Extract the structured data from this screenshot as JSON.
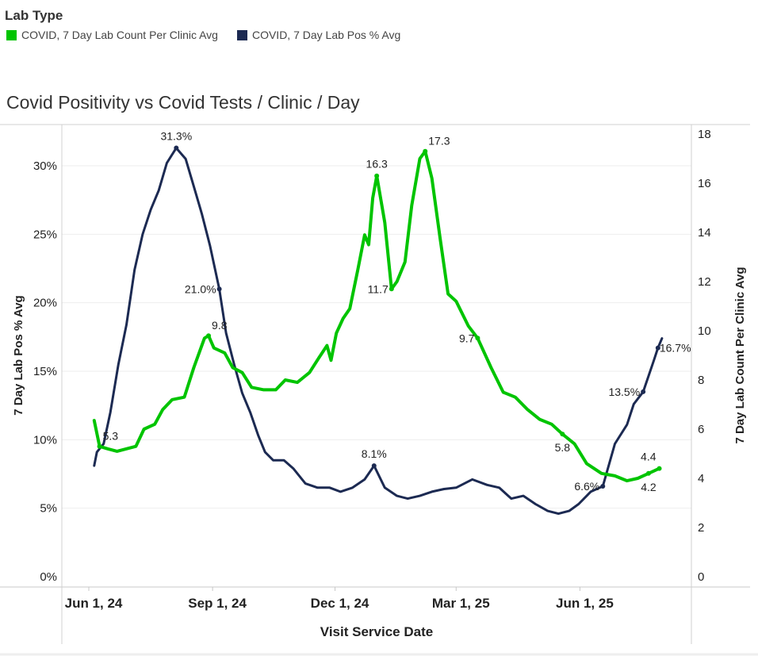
{
  "legend": {
    "title": "Lab Type",
    "items": [
      {
        "label": "COVID, 7 Day Lab Count Per Clinic Avg",
        "color": "#00c400"
      },
      {
        "label": "COVID, 7 Day Lab Pos % Avg",
        "color": "#1c2a52"
      }
    ]
  },
  "chart_data": {
    "type": "line",
    "title": "Covid Positivity vs Covid Tests / Clinic / Day",
    "xlabel": "Visit Service Date",
    "ylabel_left": "7 Day Lab Pos % Avg",
    "ylabel_right": "7 Day Lab Count Per Clinic Avg",
    "x_units": "days since Jun 1, 2024",
    "x_ticks": [
      {
        "day": 0,
        "label": "Jun 1, 24"
      },
      {
        "day": 92,
        "label": "Sep 1, 24"
      },
      {
        "day": 183,
        "label": "Dec 1, 24"
      },
      {
        "day": 273,
        "label": "Mar 1, 25"
      },
      {
        "day": 365,
        "label": "Jun 1, 25"
      }
    ],
    "xlim": [
      -20,
      450
    ],
    "ylim_left": [
      0,
      32.5
    ],
    "ylim_right": [
      0,
      18.3
    ],
    "left_ticks": [
      {
        "v": 0,
        "label": "0%"
      },
      {
        "v": 5,
        "label": "5%"
      },
      {
        "v": 10,
        "label": "10%"
      },
      {
        "v": 15,
        "label": "15%"
      },
      {
        "v": 20,
        "label": "20%"
      },
      {
        "v": 25,
        "label": "25%"
      },
      {
        "v": 30,
        "label": "30%"
      }
    ],
    "right_ticks": [
      {
        "v": 0,
        "label": "0"
      },
      {
        "v": 2,
        "label": "2"
      },
      {
        "v": 4,
        "label": "4"
      },
      {
        "v": 6,
        "label": "6"
      },
      {
        "v": 8,
        "label": "8"
      },
      {
        "v": 10,
        "label": "10"
      },
      {
        "v": 12,
        "label": "12"
      },
      {
        "v": 14,
        "label": "14"
      },
      {
        "v": 16,
        "label": "16"
      },
      {
        "v": 18,
        "label": "18"
      }
    ],
    "grid": true,
    "series": [
      {
        "name": "COVID, 7 Day Lab Pos % Avg",
        "axis": "left",
        "color": "#1c2a52",
        "points": [
          [
            4,
            8.1
          ],
          [
            6,
            9.1
          ],
          [
            11,
            9.7
          ],
          [
            16,
            12.0
          ],
          [
            22,
            15.5
          ],
          [
            28,
            18.4
          ],
          [
            34,
            22.4
          ],
          [
            40,
            25.0
          ],
          [
            46,
            26.8
          ],
          [
            52,
            28.2
          ],
          [
            58,
            30.2
          ],
          [
            65,
            31.3
          ],
          [
            72,
            30.5
          ],
          [
            78,
            28.5
          ],
          [
            84,
            26.5
          ],
          [
            90,
            24.2
          ],
          [
            97,
            21.0
          ],
          [
            102,
            17.8
          ],
          [
            108,
            15.5
          ],
          [
            114,
            13.4
          ],
          [
            120,
            12.0
          ],
          [
            126,
            10.3
          ],
          [
            131,
            9.1
          ],
          [
            137,
            8.5
          ],
          [
            145,
            8.5
          ],
          [
            152,
            7.9
          ],
          [
            161,
            6.8
          ],
          [
            170,
            6.5
          ],
          [
            179,
            6.5
          ],
          [
            187,
            6.2
          ],
          [
            196,
            6.5
          ],
          [
            205,
            7.1
          ],
          [
            212,
            8.1
          ],
          [
            220,
            6.5
          ],
          [
            229,
            5.9
          ],
          [
            237,
            5.7
          ],
          [
            246,
            5.9
          ],
          [
            255,
            6.2
          ],
          [
            264,
            6.4
          ],
          [
            273,
            6.5
          ],
          [
            285,
            7.1
          ],
          [
            296,
            6.7
          ],
          [
            305,
            6.5
          ],
          [
            314,
            5.7
          ],
          [
            323,
            5.9
          ],
          [
            332,
            5.3
          ],
          [
            341,
            4.8
          ],
          [
            349,
            4.6
          ],
          [
            357,
            4.8
          ],
          [
            364,
            5.3
          ],
          [
            373,
            6.2
          ],
          [
            382,
            6.6
          ],
          [
            391,
            9.7
          ],
          [
            400,
            11.1
          ],
          [
            405,
            12.6
          ],
          [
            412,
            13.5
          ],
          [
            420,
            15.8
          ],
          [
            423,
            16.7
          ],
          [
            426,
            17.4
          ]
        ]
      },
      {
        "name": "COVID, 7 Day Lab Count Per Clinic Avg",
        "axis": "right",
        "color": "#00c400",
        "points": [
          [
            4,
            6.35
          ],
          [
            8,
            5.3
          ],
          [
            14,
            5.2
          ],
          [
            21,
            5.1
          ],
          [
            28,
            5.2
          ],
          [
            35,
            5.3
          ],
          [
            41,
            6.0
          ],
          [
            49,
            6.2
          ],
          [
            55,
            6.8
          ],
          [
            62,
            7.2
          ],
          [
            71,
            7.3
          ],
          [
            78,
            8.5
          ],
          [
            86,
            9.7
          ],
          [
            89,
            9.8
          ],
          [
            93,
            9.3
          ],
          [
            101,
            9.1
          ],
          [
            107,
            8.5
          ],
          [
            114,
            8.3
          ],
          [
            121,
            7.7
          ],
          [
            130,
            7.6
          ],
          [
            139,
            7.6
          ],
          [
            146,
            8.0
          ],
          [
            155,
            7.9
          ],
          [
            164,
            8.3
          ],
          [
            171,
            8.9
          ],
          [
            177,
            9.4
          ],
          [
            180,
            8.8
          ],
          [
            184,
            9.9
          ],
          [
            189,
            10.5
          ],
          [
            194,
            10.9
          ],
          [
            200,
            12.5
          ],
          [
            205,
            13.9
          ],
          [
            208,
            13.5
          ],
          [
            211,
            15.4
          ],
          [
            214,
            16.3
          ],
          [
            220,
            14.4
          ],
          [
            225,
            11.7
          ],
          [
            229,
            12.0
          ],
          [
            235,
            12.8
          ],
          [
            240,
            15.1
          ],
          [
            246,
            17.0
          ],
          [
            250,
            17.3
          ],
          [
            255,
            16.2
          ],
          [
            261,
            13.8
          ],
          [
            267,
            11.5
          ],
          [
            273,
            11.2
          ],
          [
            282,
            10.2
          ],
          [
            289,
            9.7
          ],
          [
            299,
            8.5
          ],
          [
            308,
            7.5
          ],
          [
            317,
            7.3
          ],
          [
            326,
            6.8
          ],
          [
            335,
            6.4
          ],
          [
            344,
            6.2
          ],
          [
            352,
            5.8
          ],
          [
            361,
            5.4
          ],
          [
            370,
            4.6
          ],
          [
            381,
            4.2
          ],
          [
            391,
            4.1
          ],
          [
            400,
            3.9
          ],
          [
            408,
            4.0
          ],
          [
            416,
            4.2
          ],
          [
            424,
            4.4
          ]
        ]
      }
    ],
    "annotations": [
      {
        "series": 0,
        "day": 65,
        "value": 31.3,
        "text": "31.3%",
        "pos": "above"
      },
      {
        "series": 0,
        "day": 97,
        "value": 21.0,
        "text": "21.0%",
        "pos": "left"
      },
      {
        "series": 0,
        "day": 212,
        "value": 8.1,
        "text": "8.1%",
        "pos": "above"
      },
      {
        "series": 0,
        "day": 382,
        "value": 6.6,
        "text": "6.6%",
        "pos": "left"
      },
      {
        "series": 0,
        "day": 412,
        "value": 13.5,
        "text": "13.5%",
        "pos": "left"
      },
      {
        "series": 0,
        "day": 423,
        "value": 16.7,
        "text": "16.7%",
        "pos": "right"
      },
      {
        "series": 1,
        "day": 8,
        "value": 5.3,
        "text": "5.3",
        "pos": "aboveright"
      },
      {
        "series": 1,
        "day": 89,
        "value": 9.8,
        "text": "9.8",
        "pos": "aboveright"
      },
      {
        "series": 1,
        "day": 214,
        "value": 16.3,
        "text": "16.3",
        "pos": "above"
      },
      {
        "series": 1,
        "day": 225,
        "value": 11.7,
        "text": "11.7",
        "pos": "left"
      },
      {
        "series": 1,
        "day": 250,
        "value": 17.3,
        "text": "17.3",
        "pos": "aboveright"
      },
      {
        "series": 1,
        "day": 289,
        "value": 9.7,
        "text": "9.7",
        "pos": "left"
      },
      {
        "series": 1,
        "day": 352,
        "value": 5.8,
        "text": "5.8",
        "pos": "below"
      },
      {
        "series": 1,
        "day": 416,
        "value": 4.2,
        "text": "4.2",
        "pos": "below"
      },
      {
        "series": 1,
        "day": 424,
        "value": 4.4,
        "text": "4.4",
        "pos": "aboveleft"
      }
    ]
  }
}
